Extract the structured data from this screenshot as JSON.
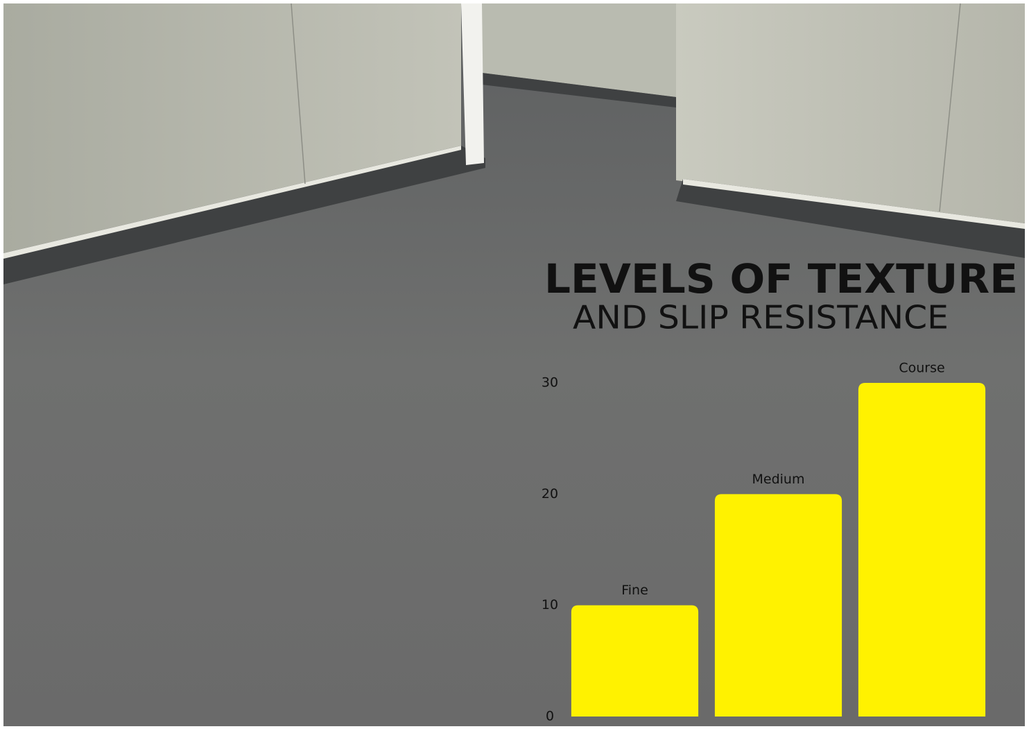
{
  "chart_data": {
    "type": "bar",
    "title": "LEVELS OF TEXTURE",
    "subtitle": "AND SLIP RESISTANCE",
    "categories": [
      "Fine",
      "Medium",
      "Course"
    ],
    "values": [
      10,
      20,
      30
    ],
    "color": "#fff200",
    "ylim": [
      0,
      30
    ],
    "yticks": [
      0,
      10,
      20,
      30
    ]
  }
}
